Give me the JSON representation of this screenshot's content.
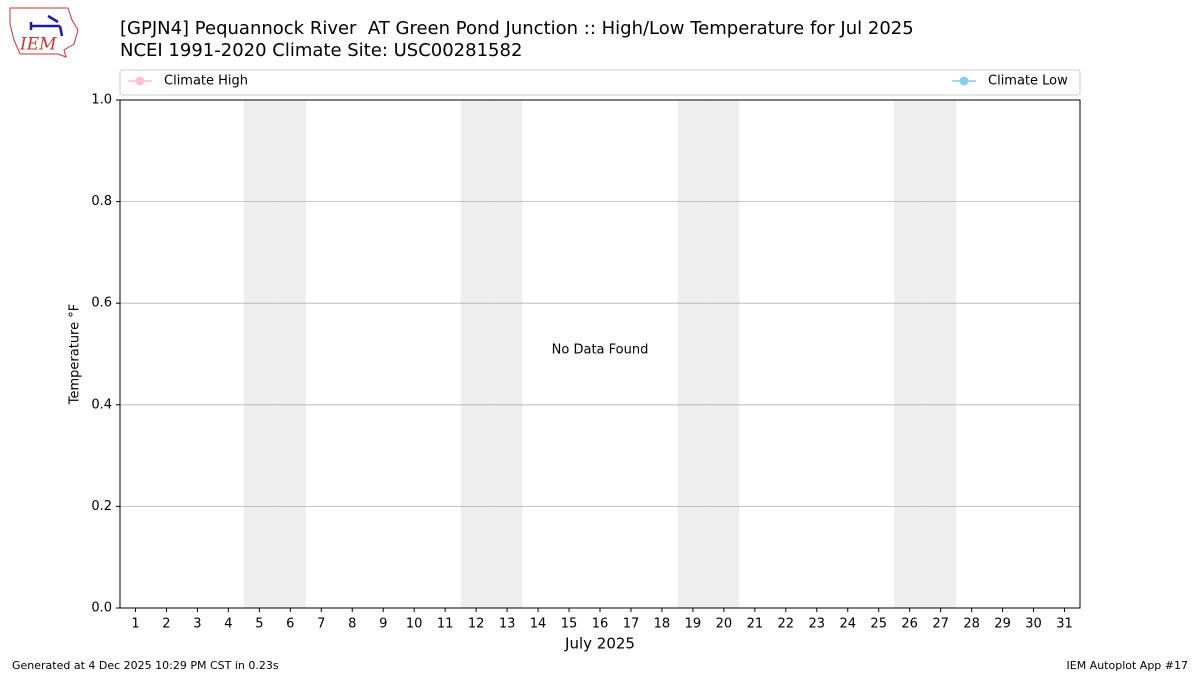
{
  "chart_data": {
    "type": "line",
    "title": "[GPJN4] Pequannock River  AT Green Pond Junction :: High/Low Temperature for Jul 2025",
    "subtitle": "NCEI 1991-2020 Climate Site: USC00281582",
    "annotation": "No Data Found",
    "xlabel": "July 2025",
    "ylabel": "Temperature °F",
    "footer_left": "Generated at 4 Dec 2025 10:29 PM CST in 0.23s",
    "footer_right": "IEM Autoplot App #17",
    "logo": "IEM",
    "x": [
      1,
      2,
      3,
      4,
      5,
      6,
      7,
      8,
      9,
      10,
      11,
      12,
      13,
      14,
      15,
      16,
      17,
      18,
      19,
      20,
      21,
      22,
      23,
      24,
      25,
      26,
      27,
      28,
      29,
      30,
      31
    ],
    "series": [
      {
        "name": "Climate High",
        "color": "#ffc0cb",
        "values": [
          null,
          null,
          null,
          null,
          null,
          null,
          null,
          null,
          null,
          null,
          null,
          null,
          null,
          null,
          null,
          null,
          null,
          null,
          null,
          null,
          null,
          null,
          null,
          null,
          null,
          null,
          null,
          null,
          null,
          null,
          null
        ]
      },
      {
        "name": "Climate Low",
        "color": "#87ceeb",
        "values": [
          null,
          null,
          null,
          null,
          null,
          null,
          null,
          null,
          null,
          null,
          null,
          null,
          null,
          null,
          null,
          null,
          null,
          null,
          null,
          null,
          null,
          null,
          null,
          null,
          null,
          null,
          null,
          null,
          null,
          null,
          null
        ]
      }
    ],
    "shaded_days": [
      5,
      6,
      12,
      13,
      19,
      20,
      26,
      27
    ],
    "shade_color": "#eeeeee",
    "xlim": [
      0.5,
      31.5
    ],
    "xticks": [
      1,
      2,
      3,
      4,
      5,
      6,
      7,
      8,
      9,
      10,
      11,
      12,
      13,
      14,
      15,
      16,
      17,
      18,
      19,
      20,
      21,
      22,
      23,
      24,
      25,
      26,
      27,
      28,
      29,
      30,
      31
    ],
    "ylim": [
      0,
      1
    ],
    "yticks": [
      {
        "value": 0,
        "label": "0.0"
      },
      {
        "value": 0.2,
        "label": "0.2"
      },
      {
        "value": 0.4,
        "label": "0.4"
      },
      {
        "value": 0.6,
        "label": "0.6"
      },
      {
        "value": 0.8,
        "label": "0.8"
      },
      {
        "value": 1,
        "label": "1.0"
      }
    ],
    "grid": true
  }
}
